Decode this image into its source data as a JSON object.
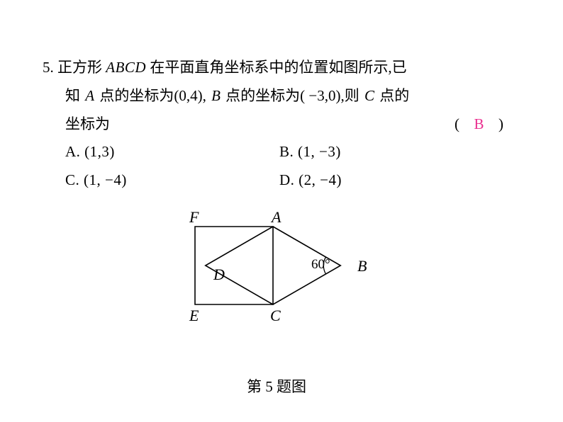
{
  "question": {
    "number": "5.",
    "line1_pre": "正方形",
    "line1_abcd": "ABCD",
    "line1_post": "在平面直角坐标系中的位置如图所示,已",
    "line2_pre": "知",
    "line2_A": "A",
    "line2_mid1": "点的坐标为(0,4),",
    "line2_B": "B",
    "line2_mid2": "点的坐标为( −3,0),则",
    "line2_C": "C",
    "line2_post": "点的",
    "line3": "坐标为"
  },
  "paren_open": "(",
  "answer_letter": "B",
  "paren_close": ")",
  "options": {
    "A": "A. (1,3)",
    "B": "B. (1, −3)",
    "C": "C. (1, −4)",
    "D": "D. (2, −4)"
  },
  "figure": {
    "labels": {
      "F": "F",
      "A": "A",
      "B": "B",
      "C": "C",
      "D": "D",
      "E": "E"
    },
    "angle_text": "60°",
    "caption": "第 5 题图",
    "geometry": {
      "square_side": 110,
      "AB_len": 127,
      "stroke": "#000000",
      "stroke_width": 1.6
    }
  }
}
